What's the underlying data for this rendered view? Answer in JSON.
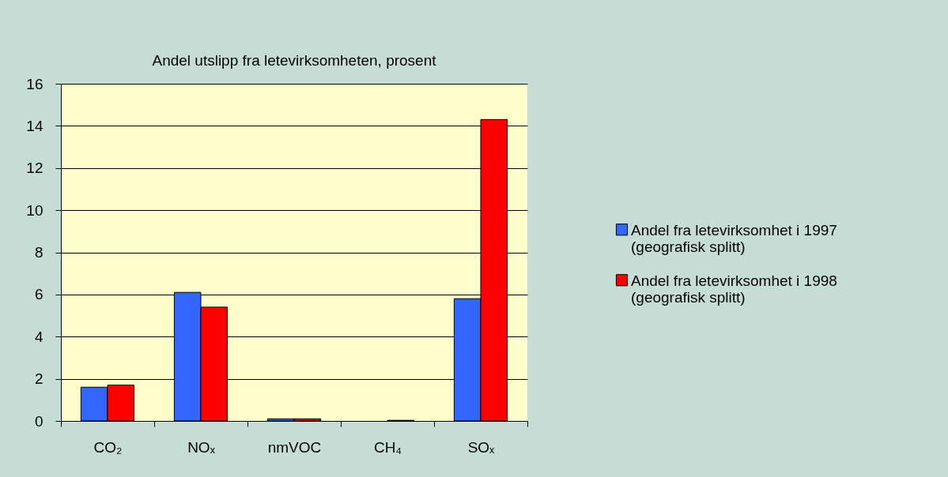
{
  "chart_data": {
    "type": "bar",
    "title": "Andel utslipp fra letevirksomheten, prosent",
    "categories": [
      "CO₂",
      "NOₓ",
      "nmVOC",
      "CH₄",
      "SOₓ"
    ],
    "series": [
      {
        "name": "Andel fra letevirksomhet i 1997 (geografisk splitt)",
        "color": "#3366ff",
        "values": [
          1.6,
          6.1,
          0.1,
          null,
          5.8
        ]
      },
      {
        "name": "Andel fra letevirksomhet i 1998 (geografisk splitt)",
        "color": "#ff0000",
        "values": [
          1.7,
          5.4,
          0.1,
          0.03,
          14.3
        ]
      }
    ],
    "ylim": [
      0,
      16
    ],
    "yticks": [
      0,
      2,
      4,
      6,
      8,
      10,
      12,
      14,
      16
    ],
    "grid": "y",
    "legend": "right"
  }
}
